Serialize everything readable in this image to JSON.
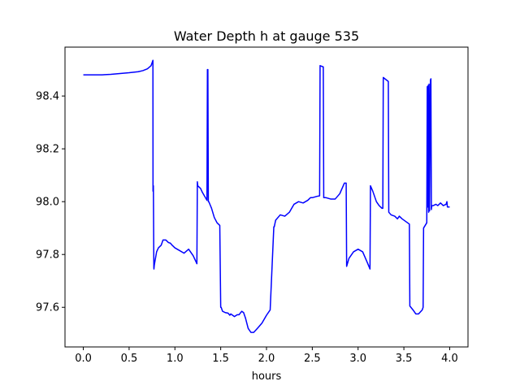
{
  "chart_data": {
    "type": "line",
    "title": "Water Depth h at gauge 535",
    "xlabel": "hours",
    "ylabel": "",
    "xlim": [
      -0.2,
      4.2
    ],
    "ylim": [
      97.45,
      98.585
    ],
    "xticks": [
      0.0,
      0.5,
      1.0,
      1.5,
      2.0,
      2.5,
      3.0,
      3.5,
      4.0
    ],
    "xtick_labels": [
      "0.0",
      "0.5",
      "1.0",
      "1.5",
      "2.0",
      "2.5",
      "3.0",
      "3.5",
      "4.0"
    ],
    "yticks": [
      97.6,
      97.8,
      98.0,
      98.2,
      98.4
    ],
    "ytick_labels": [
      "97.6",
      "97.8",
      "98.0",
      "98.2",
      "98.4"
    ],
    "grid": false,
    "series": [
      {
        "color": "#0000ff",
        "x": [
          0.0,
          0.1,
          0.2,
          0.3,
          0.4,
          0.5,
          0.6,
          0.65,
          0.7,
          0.74,
          0.76,
          0.761,
          0.765,
          0.77,
          0.771,
          0.775,
          0.8,
          0.82,
          0.85,
          0.87,
          0.9,
          0.93,
          0.95,
          0.97,
          1.0,
          1.05,
          1.1,
          1.15,
          1.2,
          1.24,
          1.245,
          1.25,
          1.28,
          1.3,
          1.35,
          1.355,
          1.36,
          1.365,
          1.37,
          1.4,
          1.43,
          1.46,
          1.49,
          1.5,
          1.505,
          1.52,
          1.55,
          1.58,
          1.6,
          1.61,
          1.65,
          1.68,
          1.7,
          1.73,
          1.75,
          1.77,
          1.8,
          1.83,
          1.86,
          1.9,
          1.95,
          2.0,
          2.04,
          2.08,
          2.085,
          2.1,
          2.15,
          2.2,
          2.25,
          2.3,
          2.35,
          2.4,
          2.45,
          2.48,
          2.5,
          2.55,
          2.58,
          2.585,
          2.62,
          2.625,
          2.65,
          2.7,
          2.75,
          2.8,
          2.85,
          2.87,
          2.875,
          2.9,
          2.95,
          3.0,
          3.05,
          3.1,
          3.13,
          3.135,
          3.16,
          3.2,
          3.23,
          3.26,
          3.27,
          3.275,
          3.33,
          3.335,
          3.36,
          3.4,
          3.43,
          3.45,
          3.48,
          3.5,
          3.54,
          3.56,
          3.565,
          3.6,
          3.63,
          3.66,
          3.7,
          3.71,
          3.715,
          3.75,
          3.755,
          3.76,
          3.765,
          3.77,
          3.775,
          3.78,
          3.79,
          3.795,
          3.8,
          3.805,
          3.82,
          3.85,
          3.87,
          3.9,
          3.93,
          3.96,
          3.97,
          3.975,
          3.98,
          4.0
        ],
        "values": [
          98.48,
          98.48,
          98.48,
          98.482,
          98.485,
          98.488,
          98.492,
          98.496,
          98.503,
          98.515,
          98.535,
          98.04,
          98.06,
          97.75,
          97.745,
          97.76,
          97.81,
          97.825,
          97.835,
          97.855,
          97.855,
          97.845,
          97.843,
          97.835,
          97.825,
          97.815,
          97.805,
          97.82,
          97.795,
          97.765,
          98.075,
          98.06,
          98.05,
          98.035,
          98.005,
          98.5,
          98.5,
          98.0,
          98.0,
          97.975,
          97.94,
          97.92,
          97.91,
          97.6,
          97.6,
          97.585,
          97.58,
          97.578,
          97.57,
          97.575,
          97.565,
          97.572,
          97.572,
          97.585,
          97.58,
          97.56,
          97.52,
          97.505,
          97.505,
          97.52,
          97.54,
          97.57,
          97.59,
          97.905,
          97.905,
          97.93,
          97.95,
          97.945,
          97.96,
          97.99,
          98.0,
          97.995,
          98.005,
          98.015,
          98.015,
          98.02,
          98.022,
          98.515,
          98.51,
          98.015,
          98.015,
          98.01,
          98.01,
          98.03,
          98.07,
          98.07,
          97.755,
          97.785,
          97.81,
          97.82,
          97.81,
          97.77,
          97.745,
          98.06,
          98.04,
          98.0,
          97.985,
          97.975,
          97.975,
          98.47,
          98.455,
          97.96,
          97.95,
          97.945,
          97.935,
          97.945,
          97.935,
          97.93,
          97.92,
          97.915,
          97.605,
          97.59,
          97.575,
          97.575,
          97.59,
          97.6,
          97.9,
          97.92,
          98.435,
          97.98,
          98.44,
          97.96,
          98.445,
          97.965,
          98.46,
          98.465,
          97.97,
          97.985,
          97.985,
          97.99,
          97.985,
          97.995,
          97.985,
          97.99,
          98.0,
          97.98,
          97.98,
          97.98
        ]
      }
    ]
  }
}
